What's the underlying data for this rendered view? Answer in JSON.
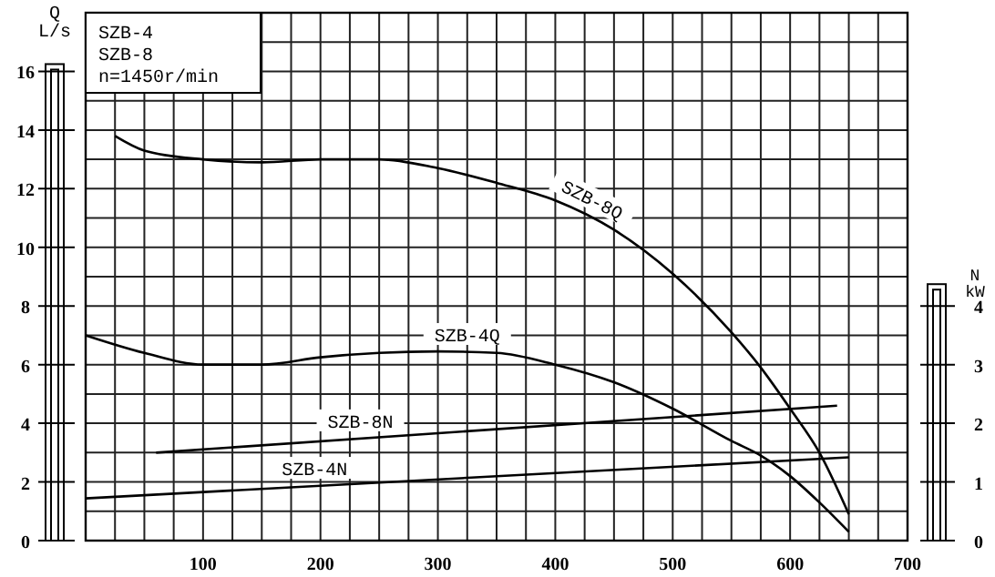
{
  "chart_data": {
    "type": "line",
    "ylabel": "Q L/s",
    "y2label": "N kW",
    "annotations": [
      "SZB-4",
      "SZB-8",
      "n=1450r/min"
    ],
    "xlim": [
      0,
      700
    ],
    "xticks": [
      100,
      200,
      300,
      400,
      500,
      600,
      700
    ],
    "ylim": [
      0,
      18
    ],
    "yticks": [
      0,
      2,
      4,
      6,
      8,
      10,
      12,
      14,
      16
    ],
    "y2lim": [
      0,
      9
    ],
    "y2ticks": [
      0,
      1,
      2,
      3,
      4
    ],
    "grid": true,
    "marker": "none",
    "line_style": "solid",
    "series": [
      {
        "name": "SZB-8Q",
        "color": "#000000",
        "x": [
          25,
          50,
          100,
          150,
          200,
          250,
          300,
          350,
          400,
          450,
          500,
          550,
          575,
          600,
          625,
          650
        ],
        "values": [
          13.8,
          13.3,
          13.0,
          12.9,
          13.0,
          13.0,
          12.7,
          12.2,
          11.6,
          10.6,
          9.1,
          7.1,
          5.9,
          4.5,
          3.0,
          0.9
        ]
      },
      {
        "name": "SZB-4Q",
        "color": "#000000",
        "x": [
          0,
          50,
          100,
          150,
          200,
          250,
          300,
          350,
          400,
          450,
          500,
          550,
          575,
          600,
          625,
          650
        ],
        "values": [
          7.0,
          6.4,
          6.0,
          6.0,
          6.25,
          6.4,
          6.45,
          6.4,
          6.0,
          5.4,
          4.5,
          3.4,
          2.9,
          2.2,
          1.3,
          0.3
        ]
      },
      {
        "name": "SZB-8N",
        "color": "#000000",
        "axis": "y2",
        "x": [
          60,
          640
        ],
        "values": [
          1.5,
          2.3
        ]
      },
      {
        "name": "SZB-4N",
        "color": "#000000",
        "axis": "y2",
        "x": [
          0,
          650
        ],
        "values": [
          0.72,
          1.42
        ]
      }
    ]
  }
}
